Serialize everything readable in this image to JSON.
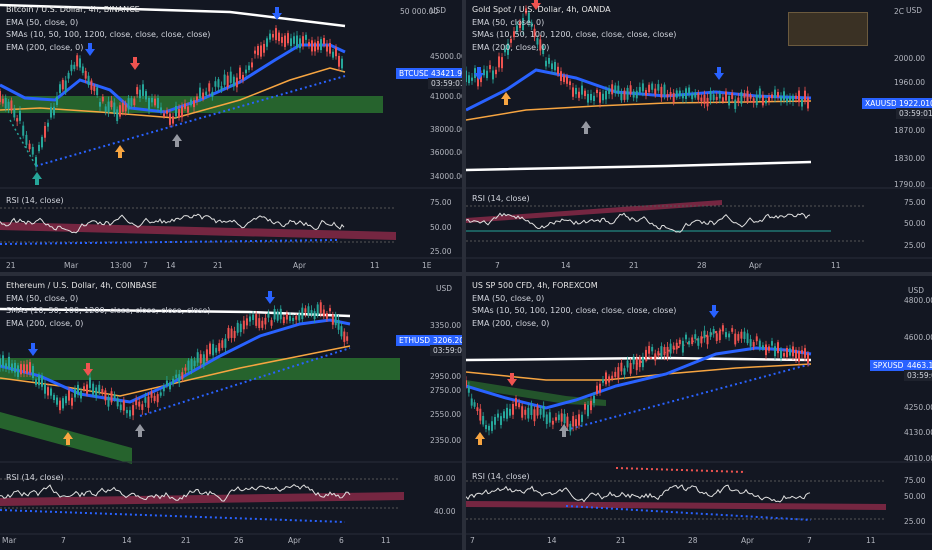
{
  "colors": {
    "background": "#131722",
    "up": "#26a69a",
    "down": "#ef5350",
    "ema50": "#2962ff",
    "ema200": "#f7a541",
    "long_line": "#ffffff",
    "green_zone": "#2e7d32",
    "red_band": "#8e2a4a",
    "arrow_blue": "#2962ff",
    "arrow_orange": "#f7a541",
    "arrow_red": "#ef5350",
    "arrow_grey": "#9598a1",
    "arrow_teal": "#26a69a"
  },
  "panels": [
    {
      "id": "btc",
      "legend": [
        "Bitcoin / U.S. Dollar, 4h, BINANCE",
        "EMA (50, close, 0)",
        "SMAs (10, 50, 100, 1200, close, close, close, close)",
        "EMA (200, close, 0)"
      ],
      "currency": "USD",
      "price_labels": [
        "50 000.00",
        "45000.00",
        "41000.00",
        "38000.00",
        "36000.00",
        "34000.00"
      ],
      "tag_symbol": "BTCUSD",
      "tag_price": "43421.96",
      "tag_time": "03:59:01",
      "rsi_label": "RSI (14, close)",
      "rsi_levels": [
        "75.00",
        "50.00",
        "25.00"
      ],
      "x_labels": [
        "21",
        "Mar",
        "13:00",
        "7",
        "14",
        "21",
        "Apr",
        "11",
        "1E"
      ]
    },
    {
      "id": "gold",
      "legend": [
        "Gold Spot / U.S. Dollar, 4h, OANDA",
        "EMA (50, close, 0)",
        "SMAs (10, 50, 100, 1200, close, close, close, close)",
        "EMA (200, close, 0)"
      ],
      "currency": "USD",
      "price_labels": [
        "2C",
        "2000.00",
        "1960.00",
        "1870.00",
        "1830.00",
        "1790.00"
      ],
      "tag_symbol": "XAUUSD",
      "tag_price": "1922.010",
      "tag_time": "03:59:01",
      "rsi_label": "RSI (14, close)",
      "rsi_levels": [
        "75.00",
        "50.00",
        "25.00"
      ],
      "x_labels": [
        "7",
        "14",
        "21",
        "28",
        "Apr",
        "11"
      ]
    },
    {
      "id": "eth",
      "legend": [
        "Ethereum / U.S. Dollar, 4h, COINBASE",
        "EMA (50, close, 0)",
        "SMAs (10, 50, 100, 1200, close, close, close, close)",
        "EMA (200, close, 0)"
      ],
      "currency": "USD",
      "price_labels": [
        "3350.00",
        "2950.00",
        "2750.00",
        "2550.00",
        "2350.00"
      ],
      "tag_symbol": "ETHUSD",
      "tag_price": "3206.20",
      "tag_time": "03:59:01",
      "rsi_label": "RSI (14, close)",
      "rsi_levels": [
        "80.00",
        "40.00"
      ],
      "x_labels": [
        "Mar",
        "7",
        "14",
        "21",
        "26",
        "Apr",
        "6",
        "11"
      ]
    },
    {
      "id": "spx",
      "legend": [
        "US SP 500 CFD, 4h, FOREXCOM",
        "EMA (50, close, 0)",
        "SMAs (10, 50, 100, 1200, close, close, close, close)",
        "EMA (200, close, 0)"
      ],
      "currency": "USD",
      "price_labels": [
        "4800.00",
        "4600.00",
        "4250.00",
        "4130.00",
        "4010.00"
      ],
      "tag_symbol": "SPXUSD",
      "tag_price": "4463.1",
      "tag_time": "03:59:01",
      "rsi_label": "RSI (14, close)",
      "rsi_levels": [
        "75.00",
        "50.00",
        "25.00"
      ],
      "x_labels": [
        "7",
        "14",
        "21",
        "28",
        "Apr",
        "7",
        "11"
      ]
    }
  ]
}
